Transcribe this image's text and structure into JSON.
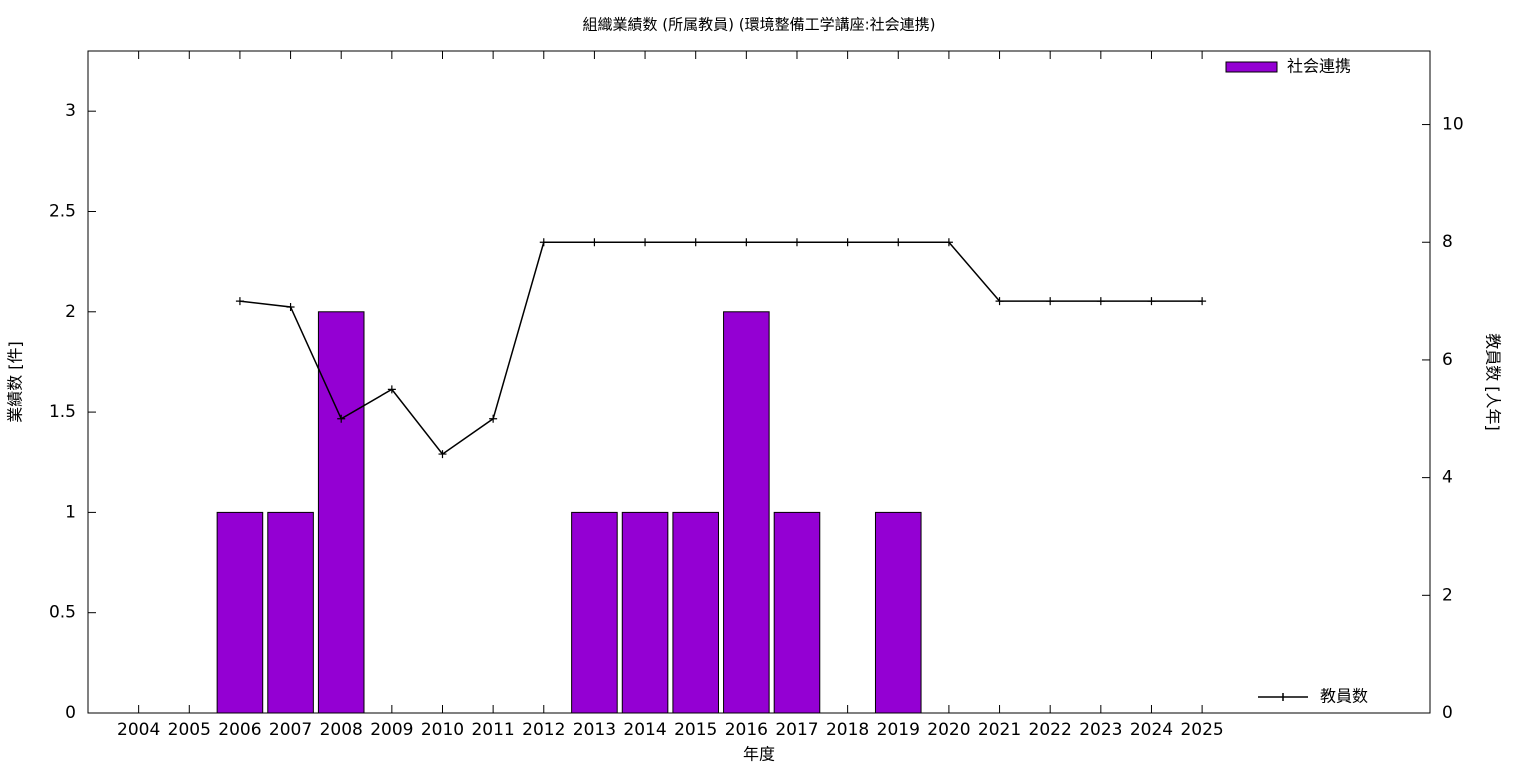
{
  "chart_data": {
    "type": "bar_line",
    "title": "組織業績数 (所属教員) (環境整備工学講座:社会連携)",
    "x_label": "年度",
    "y_label": "業績数 [件]",
    "y2_label": "教員数 [人年]",
    "categories": [
      "2004",
      "2005",
      "2006",
      "2007",
      "2008",
      "2009",
      "2010",
      "2011",
      "2012",
      "2013",
      "2014",
      "2015",
      "2016",
      "2017",
      "2018",
      "2019",
      "2020",
      "2021",
      "2022",
      "2023",
      "2024",
      "2025"
    ],
    "series": [
      {
        "name": "社会連携",
        "type": "bar",
        "color": "#9400d3",
        "values": [
          0,
          0,
          1,
          1,
          2,
          0,
          0,
          0,
          0,
          1,
          1,
          1,
          2,
          1,
          0,
          1,
          0,
          0,
          0,
          0,
          0,
          0
        ]
      },
      {
        "name": "教員数",
        "type": "line",
        "axis": "y2",
        "color": "#000000",
        "values": [
          null,
          null,
          7,
          6.9,
          5,
          5.5,
          4.4,
          5,
          8,
          8,
          8,
          8,
          8,
          8,
          8,
          8,
          8,
          7,
          7,
          7,
          7,
          7
        ]
      }
    ],
    "ylim": [
      0,
      3.3
    ],
    "yticks": [
      0,
      0.5,
      1,
      1.5,
      2,
      2.5,
      3
    ],
    "y2lim": [
      0,
      11.25
    ],
    "y2ticks": [
      0,
      2,
      4,
      6,
      8,
      10
    ],
    "grid": false
  }
}
